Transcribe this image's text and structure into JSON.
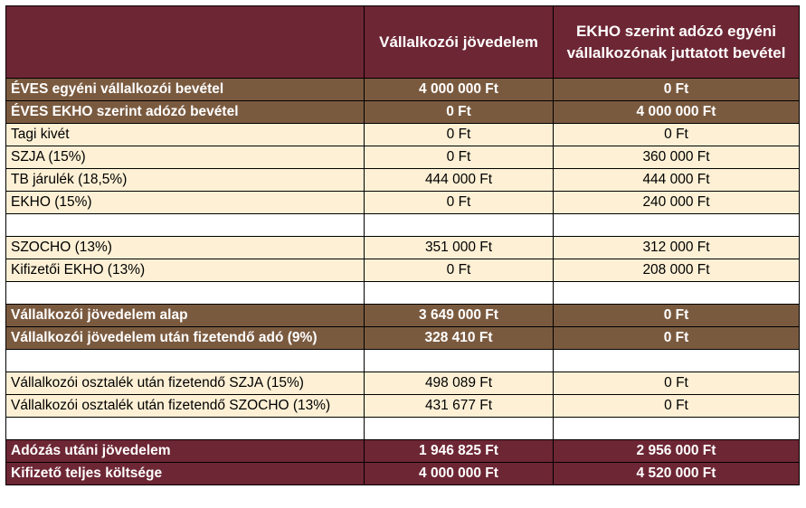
{
  "header": {
    "col1": "",
    "col2": "Vállalkozói jövedelem",
    "col3": "EKHO szerint adózó egyéni vállalkozónak juttatott bevétel"
  },
  "rows": [
    {
      "label": "ÉVES egyéni vállalkozói bevétel",
      "v1": "4 000 000 Ft",
      "v2": "0 Ft"
    },
    {
      "label": "ÉVES EKHO szerint adózó bevétel",
      "v1": "0 Ft",
      "v2": "4 000 000 Ft"
    },
    {
      "label": "Tagi kivét",
      "v1": "0 Ft",
      "v2": "0 Ft"
    },
    {
      "label": "SZJA (15%)",
      "v1": "0 Ft",
      "v2": "360 000 Ft"
    },
    {
      "label": "TB járulék (18,5%)",
      "v1": "444 000 Ft",
      "v2": "444 000 Ft"
    },
    {
      "label": "EKHO (15%)",
      "v1": "0 Ft",
      "v2": "240 000 Ft"
    },
    {
      "label": "SZOCHO (13%)",
      "v1": "351 000 Ft",
      "v2": "312 000 Ft"
    },
    {
      "label": "Kifizetői EKHO (13%)",
      "v1": "0 Ft",
      "v2": "208 000 Ft"
    },
    {
      "label": "Vállalkozói jövedelem alap",
      "v1": "3 649 000 Ft",
      "v2": "0 Ft"
    },
    {
      "label": "Vállalkozói jövedelem után fizetendő adó (9%)",
      "v1": "328 410 Ft",
      "v2": "0 Ft"
    },
    {
      "label": "Vállalkozói osztalék után fizetendő SZJA (15%)",
      "v1": "498 089 Ft",
      "v2": "0 Ft"
    },
    {
      "label": "Vállalkozói osztalék után fizetendő SZOCHO (13%)",
      "v1": "431 677 Ft",
      "v2": "0 Ft"
    },
    {
      "label": "Adózás utáni jövedelem",
      "v1": "1 946 825 Ft",
      "v2": "2 956 000 Ft"
    },
    {
      "label": "Kifizető teljes költsége",
      "v1": "4 000 000 Ft",
      "v2": "4 520 000 Ft"
    }
  ],
  "colors": {
    "maroon": "#6d2634",
    "brown": "#7a5a3f",
    "beige": "#fdf0d5"
  }
}
